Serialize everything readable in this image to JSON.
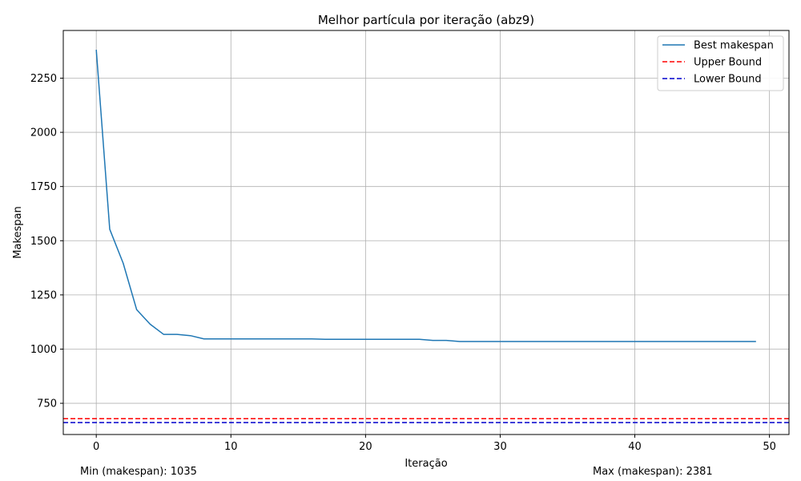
{
  "chart_data": {
    "type": "line",
    "title": "Melhor partícula por iteração (abz9)",
    "xlabel": "Iteração",
    "ylabel": "Makespan",
    "xlim": [
      -2.45,
      51.45
    ],
    "ylim": [
      606,
      2470
    ],
    "xticks": [
      0,
      10,
      20,
      30,
      40,
      50
    ],
    "yticks": [
      750,
      1000,
      1250,
      1500,
      1750,
      2000,
      2250
    ],
    "grid": true,
    "legend_position": "top-right",
    "series": [
      {
        "name": "Best makespan",
        "color": "#1f77b4",
        "style": "solid",
        "x": [
          0,
          1,
          2,
          3,
          4,
          5,
          6,
          7,
          8,
          9,
          10,
          11,
          12,
          13,
          14,
          15,
          16,
          17,
          18,
          19,
          20,
          21,
          22,
          23,
          24,
          25,
          26,
          27,
          28,
          29,
          30,
          31,
          32,
          33,
          34,
          35,
          36,
          37,
          38,
          39,
          40,
          41,
          42,
          43,
          44,
          45,
          46,
          47,
          48,
          49
        ],
        "values": [
          2381,
          1553,
          1396,
          1182,
          1115,
          1068,
          1068,
          1062,
          1047,
          1047,
          1047,
          1047,
          1047,
          1047,
          1047,
          1047,
          1047,
          1045,
          1045,
          1045,
          1045,
          1045,
          1045,
          1045,
          1045,
          1040,
          1040,
          1035,
          1035,
          1035,
          1035,
          1035,
          1035,
          1035,
          1035,
          1035,
          1035,
          1035,
          1035,
          1035,
          1035,
          1035,
          1035,
          1035,
          1035,
          1035,
          1035,
          1035,
          1035,
          1035
        ]
      }
    ],
    "hlines": [
      {
        "name": "Upper Bound",
        "value": 679,
        "color": "#ff0000",
        "style": "dashed"
      },
      {
        "name": "Lower Bound",
        "value": 661,
        "color": "#0000cd",
        "style": "dashed"
      }
    ]
  },
  "footer": {
    "min_text": "Min (makespan): 1035",
    "max_text": "Max (makespan): 2381"
  }
}
